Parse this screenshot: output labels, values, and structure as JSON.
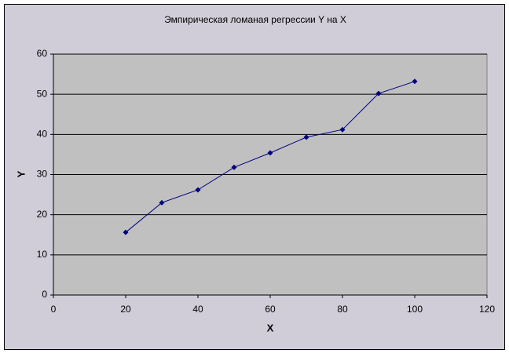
{
  "chart_data": {
    "type": "line",
    "title": "Эмпирическая ломаная регрессии Y на X",
    "x_label": "X",
    "y_label": "Y",
    "x": [
      20,
      30,
      40,
      50,
      60,
      70,
      80,
      90,
      100
    ],
    "series": [
      {
        "color": "#000080",
        "values": [
          15.6,
          23,
          26.2,
          31.8,
          35.4,
          39.3,
          41.2,
          50.2,
          53.2
        ]
      }
    ],
    "xlim": [
      0,
      120
    ],
    "xticks": [
      0,
      20,
      40,
      60,
      80,
      100,
      120
    ],
    "ylim": [
      0,
      60
    ],
    "yticks": [
      0,
      10,
      20,
      30,
      40,
      50,
      60
    ],
    "grid": true,
    "marker": "diamond"
  }
}
